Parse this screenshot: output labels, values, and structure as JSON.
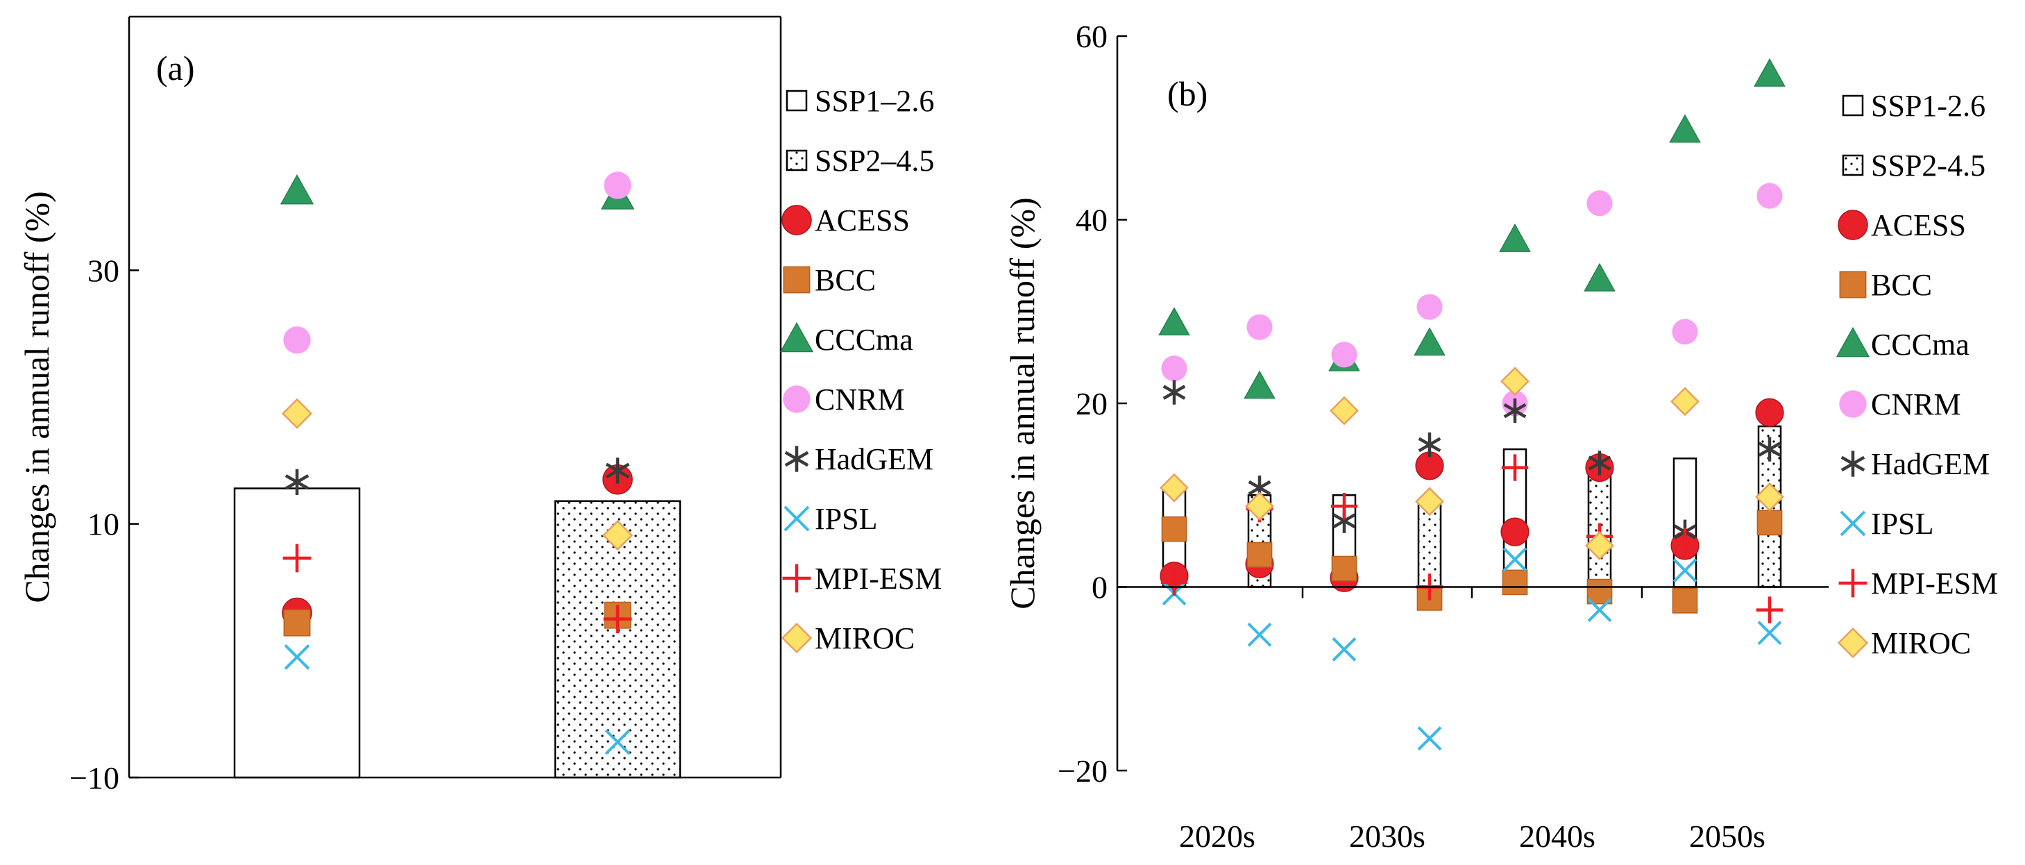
{
  "colors": {
    "ACESS": "#e8202a",
    "ACESS_b": "#c40c0c",
    "BCC": "#d7782f",
    "CCCma": "#2e9a5e",
    "CNRM": "#f7a0f2",
    "HadGEM": "#3a3a3a",
    "IPSL": "#3bb8e8",
    "MPI-ESM": "#ee1c24",
    "MIROC": "#fde26a",
    "MIROC_edge": "#e9a060"
  },
  "chart_data": [
    {
      "id": "a",
      "type": "bar",
      "panel_label": "(a)",
      "ylabel": "Changes  in annual runoff (%)",
      "ylim": [
        -10,
        50
      ],
      "yticks": [
        -10,
        10,
        30
      ],
      "ytick_labels": [
        "−10",
        "10",
        "30"
      ],
      "categories": [
        "SSP1–2.6",
        "SSP2–4.5"
      ],
      "bars": [
        {
          "scenario": "SSP1–2.6",
          "value": 12.8,
          "hatch": "none"
        },
        {
          "scenario": "SSP2–4.5",
          "value": 11.8,
          "hatch": "dots"
        }
      ],
      "legend": [
        "SSP1–2.6",
        "SSP2–4.5",
        "ACESS",
        "BCC",
        "CCCma",
        "CNRM",
        "HadGEM",
        "IPSL",
        "MPI-ESM",
        "MIROC"
      ],
      "series": [
        {
          "name": "ACESS",
          "marker": "circle",
          "values": [
            3.0,
            13.5
          ]
        },
        {
          "name": "BCC",
          "marker": "square",
          "values": [
            2.2,
            2.8
          ]
        },
        {
          "name": "CCCma",
          "marker": "triangle",
          "values": [
            36.2,
            35.8
          ]
        },
        {
          "name": "CNRM",
          "marker": "circle-small",
          "values": [
            24.5,
            36.7
          ]
        },
        {
          "name": "HadGEM",
          "marker": "asterisk",
          "values": [
            13.3,
            14.2
          ]
        },
        {
          "name": "IPSL",
          "marker": "x",
          "values": [
            -0.5,
            -7.2
          ]
        },
        {
          "name": "MPI-ESM",
          "marker": "plus",
          "values": [
            7.3,
            2.5
          ]
        },
        {
          "name": "MIROC",
          "marker": "diamond",
          "values": [
            18.7,
            9.1
          ]
        }
      ]
    },
    {
      "id": "b",
      "type": "bar",
      "panel_label": "(b)",
      "ylabel": "Changes  in annual runoff (%)",
      "ylim": [
        -20,
        60
      ],
      "yticks": [
        -20,
        0,
        20,
        40,
        60
      ],
      "ytick_labels": [
        "−20",
        "0",
        "20",
        "40",
        "60"
      ],
      "decades": [
        "2020s",
        "2030s",
        "2040s",
        "2050s"
      ],
      "bars": [
        {
          "decade": "2020s",
          "scenario": "SSP1–2.6",
          "value": 11,
          "hatch": "none"
        },
        {
          "decade": "2020s",
          "scenario": "SSP2–4.5",
          "value": 10,
          "hatch": "dots"
        },
        {
          "decade": "2030s",
          "scenario": "SSP1–2.6",
          "value": 10,
          "hatch": "none"
        },
        {
          "decade": "2030s",
          "scenario": "SSP2–4.5",
          "value": 9,
          "hatch": "dots"
        },
        {
          "decade": "2040s",
          "scenario": "SSP1–2.6",
          "value": 15,
          "hatch": "none"
        },
        {
          "decade": "2040s",
          "scenario": "SSP2–4.5",
          "value": 13,
          "hatch": "dots"
        },
        {
          "decade": "2050s",
          "scenario": "SSP1–2.6",
          "value": 14,
          "hatch": "none"
        },
        {
          "decade": "2050s",
          "scenario": "SSP2–4.5",
          "value": 17.5,
          "hatch": "dots"
        }
      ],
      "legend": [
        "SSP1-2.6",
        "SSP2-4.5",
        "ACESS",
        "BCC",
        "CCCma",
        "CNRM",
        "HadGEM",
        "IPSL",
        "MPI-ESM",
        "MIROC"
      ],
      "series": [
        {
          "name": "ACESS",
          "marker": "circle",
          "values": [
            1.2,
            2.5,
            1.0,
            13.2,
            6.0,
            13.0,
            4.5,
            19.0
          ]
        },
        {
          "name": "BCC",
          "marker": "square",
          "values": [
            6.3,
            3.5,
            2.0,
            -1.2,
            0.5,
            -0.5,
            -1.5,
            7.0
          ]
        },
        {
          "name": "CCCma",
          "marker": "triangle",
          "values": [
            28.7,
            21.8,
            24.8,
            26.5,
            37.8,
            33.5,
            49.7,
            55.8
          ]
        },
        {
          "name": "CNRM",
          "marker": "circle-small",
          "values": [
            23.8,
            28.3,
            25.3,
            30.5,
            20.0,
            41.8,
            27.8,
            42.6
          ]
        },
        {
          "name": "HadGEM",
          "marker": "asterisk",
          "values": [
            21.2,
            10.8,
            7.2,
            15.5,
            19.2,
            13.5,
            6.0,
            15.0
          ]
        },
        {
          "name": "IPSL",
          "marker": "x",
          "values": [
            -0.7,
            -5.2,
            -6.8,
            -16.5,
            3.0,
            -2.5,
            1.8,
            -5.0
          ]
        },
        {
          "name": "MPI-ESM",
          "marker": "plus",
          "values": [
            0.5,
            8.5,
            8.8,
            0.0,
            13.0,
            5.5,
            5.0,
            -2.5
          ]
        },
        {
          "name": "MIROC",
          "marker": "diamond",
          "values": [
            10.8,
            8.8,
            19.2,
            9.3,
            22.4,
            4.5,
            20.2,
            9.8
          ]
        }
      ]
    }
  ]
}
